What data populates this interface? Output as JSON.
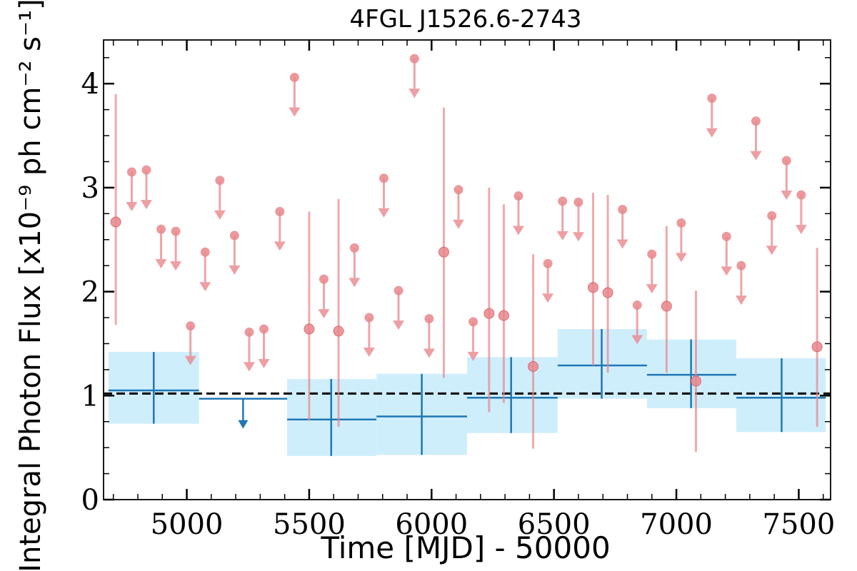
{
  "chart_data": {
    "type": "scatter",
    "title": "4FGL J1526.6-2743",
    "xlabel": "Time [MJD] - 50000",
    "ylabel": "Integral Photon Flux [x10⁻⁹ ph cm⁻² s⁻¹]",
    "xlim": [
      4660,
      7630
    ],
    "ylim": [
      0,
      4.42
    ],
    "x_ticks": [
      5000,
      5500,
      6000,
      6500,
      7000,
      7500
    ],
    "y_ticks": [
      0,
      1,
      2,
      3,
      4
    ],
    "reference_level": 1.02,
    "colors": {
      "short_bins": "#e8878c",
      "long_bins": "#1f77b4",
      "long_band": "#cfeefc",
      "reference": "#000000"
    },
    "long_bins": {
      "detections": [
        {
          "t": 4865,
          "tmin": 4680,
          "tmax": 5050,
          "flux": 1.05,
          "lo": 0.73,
          "hi": 1.42
        },
        {
          "t": 5590,
          "tmin": 5410,
          "tmax": 5775,
          "flux": 0.77,
          "lo": 0.42,
          "hi": 1.16
        },
        {
          "t": 5960,
          "tmin": 5775,
          "tmax": 6145,
          "flux": 0.8,
          "lo": 0.43,
          "hi": 1.21
        },
        {
          "t": 6325,
          "tmin": 6145,
          "tmax": 6515,
          "flux": 0.98,
          "lo": 0.64,
          "hi": 1.37
        },
        {
          "t": 6695,
          "tmin": 6515,
          "tmax": 6880,
          "flux": 1.29,
          "lo": 0.97,
          "hi": 1.64
        },
        {
          "t": 7060,
          "tmin": 6880,
          "tmax": 7245,
          "flux": 1.2,
          "lo": 0.88,
          "hi": 1.54
        },
        {
          "t": 7430,
          "tmin": 7245,
          "tmax": 7610,
          "flux": 0.98,
          "lo": 0.65,
          "hi": 1.36
        }
      ],
      "upper_limits": [
        {
          "t": 5230,
          "tmin": 5050,
          "tmax": 5410,
          "ul": 0.97
        }
      ]
    },
    "short_bins": {
      "detections": [
        {
          "t": 4710,
          "flux": 2.67,
          "lo": 1.68,
          "hi": 3.9
        },
        {
          "t": 5500,
          "flux": 1.64,
          "lo": 0.76,
          "hi": 2.77
        },
        {
          "t": 5620,
          "flux": 1.62,
          "lo": 0.7,
          "hi": 2.89
        },
        {
          "t": 6050,
          "flux": 2.38,
          "lo": 1.17,
          "hi": 3.77
        },
        {
          "t": 6235,
          "flux": 1.79,
          "lo": 0.84,
          "hi": 3.0
        },
        {
          "t": 6295,
          "flux": 1.77,
          "lo": 0.93,
          "hi": 2.84
        },
        {
          "t": 6415,
          "flux": 1.28,
          "lo": 0.49,
          "hi": 2.36
        },
        {
          "t": 6660,
          "flux": 2.04,
          "lo": 1.29,
          "hi": 2.95
        },
        {
          "t": 6720,
          "flux": 1.99,
          "lo": 1.22,
          "hi": 2.93
        },
        {
          "t": 6960,
          "flux": 1.86,
          "lo": 1.22,
          "hi": 2.63
        },
        {
          "t": 7080,
          "flux": 1.14,
          "lo": 0.46,
          "hi": 2.01
        },
        {
          "t": 7575,
          "flux": 1.47,
          "lo": 0.7,
          "hi": 2.42
        }
      ],
      "upper_limits": [
        {
          "t": 4775,
          "ul": 3.15
        },
        {
          "t": 4835,
          "ul": 3.17
        },
        {
          "t": 4895,
          "ul": 2.6
        },
        {
          "t": 4955,
          "ul": 2.58
        },
        {
          "t": 5015,
          "ul": 1.67
        },
        {
          "t": 5075,
          "ul": 2.38
        },
        {
          "t": 5135,
          "ul": 3.07
        },
        {
          "t": 5195,
          "ul": 2.54
        },
        {
          "t": 5255,
          "ul": 1.61
        },
        {
          "t": 5315,
          "ul": 1.64
        },
        {
          "t": 5380,
          "ul": 2.77
        },
        {
          "t": 5440,
          "ul": 4.06
        },
        {
          "t": 5560,
          "ul": 2.12
        },
        {
          "t": 5685,
          "ul": 2.42
        },
        {
          "t": 5745,
          "ul": 1.75
        },
        {
          "t": 5805,
          "ul": 3.09
        },
        {
          "t": 5865,
          "ul": 2.01
        },
        {
          "t": 5930,
          "ul": 4.24
        },
        {
          "t": 5990,
          "ul": 1.74
        },
        {
          "t": 6110,
          "ul": 2.98
        },
        {
          "t": 6170,
          "ul": 1.71
        },
        {
          "t": 6355,
          "ul": 2.92
        },
        {
          "t": 6475,
          "ul": 2.27
        },
        {
          "t": 6535,
          "ul": 2.87
        },
        {
          "t": 6600,
          "ul": 2.86
        },
        {
          "t": 6780,
          "ul": 2.79
        },
        {
          "t": 6840,
          "ul": 1.87
        },
        {
          "t": 6900,
          "ul": 2.36
        },
        {
          "t": 7020,
          "ul": 2.66
        },
        {
          "t": 7145,
          "ul": 3.86
        },
        {
          "t": 7205,
          "ul": 2.53
        },
        {
          "t": 7265,
          "ul": 2.25
        },
        {
          "t": 7325,
          "ul": 3.64
        },
        {
          "t": 7390,
          "ul": 2.73
        },
        {
          "t": 7450,
          "ul": 3.26
        },
        {
          "t": 7510,
          "ul": 2.93
        }
      ]
    }
  }
}
